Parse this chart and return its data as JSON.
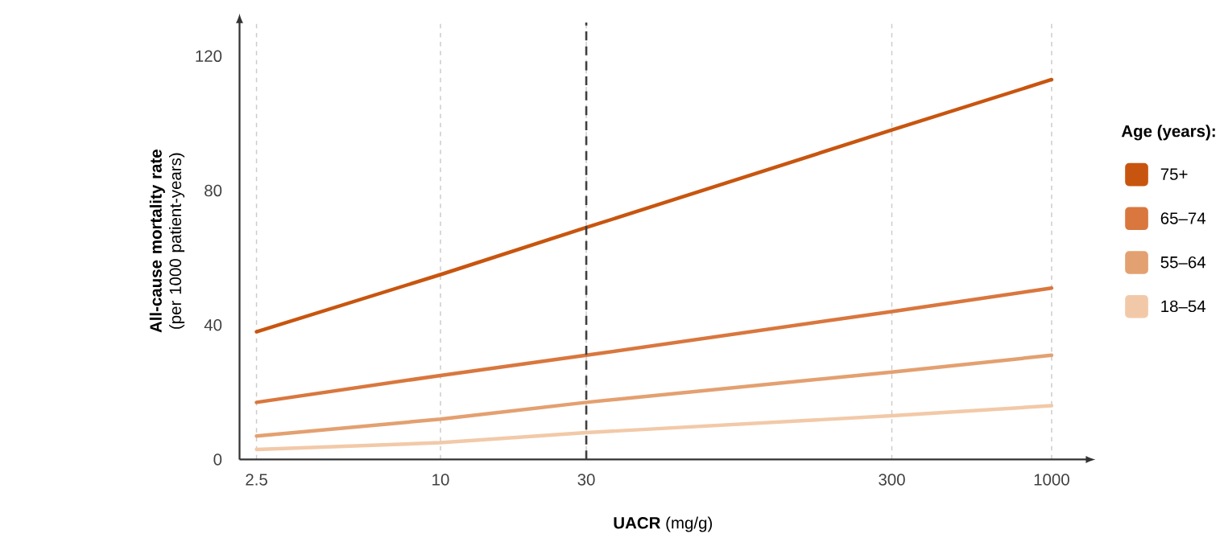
{
  "chart_data": {
    "type": "line",
    "xlabel": "**UACR** (mg/g)",
    "ylabel": "**All-cause mortality rate** (per 1000 patient-years)",
    "legend_title": "Age (years):",
    "x": [
      2.5,
      10,
      30,
      300,
      1000
    ],
    "series": [
      {
        "name": "75+",
        "color": "#c8550f",
        "values": [
          38,
          55,
          69,
          98,
          113
        ]
      },
      {
        "name": "65–74",
        "color": "#d9773e",
        "values": [
          17,
          25,
          31,
          44,
          51
        ]
      },
      {
        "name": "55–64",
        "color": "#e3a070",
        "values": [
          7,
          12,
          17,
          26,
          31
        ]
      },
      {
        "name": "18–54",
        "color": "#f2c9a8",
        "values": [
          3,
          5,
          8,
          13,
          16
        ]
      }
    ],
    "log": "x",
    "xlim": [
      2.2,
      1300
    ],
    "ylim": [
      0,
      130
    ],
    "xticks": [
      2.5,
      10,
      30,
      300,
      1000
    ],
    "yticks": [
      0,
      40,
      80,
      120
    ],
    "grid": "x",
    "legend": "right",
    "line_style": "solid",
    "marker": "none",
    "ref_lines": [
      {
        "axis": "x",
        "value": 30,
        "color": "#404040",
        "line_style": "dashed"
      }
    ]
  }
}
